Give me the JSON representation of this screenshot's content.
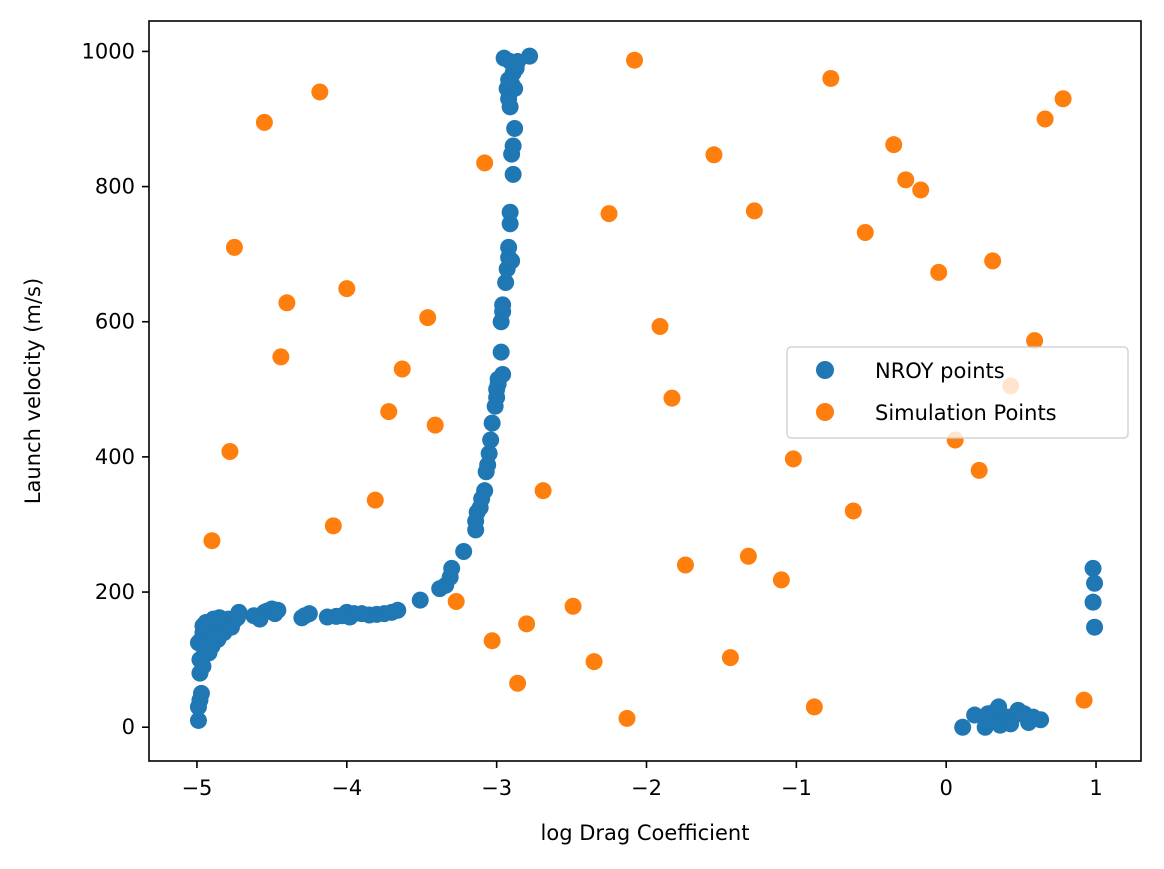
{
  "chart_data": {
    "type": "scatter",
    "title": "",
    "xlabel": "log Drag Coefficient",
    "ylabel": "Launch velocity (m/s)",
    "xlim": [
      -5.32,
      1.3
    ],
    "ylim": [
      -50,
      1045
    ],
    "xticks": [
      -5,
      -4,
      -3,
      -2,
      -1,
      0,
      1
    ],
    "xtick_labels": [
      "−5",
      "−4",
      "−3",
      "−2",
      "−1",
      "0",
      "1"
    ],
    "yticks": [
      0,
      200,
      400,
      600,
      800,
      1000
    ],
    "ytick_labels": [
      "0",
      "200",
      "400",
      "600",
      "800",
      "1000"
    ],
    "grid": false,
    "legend_position": "center-right",
    "series": [
      {
        "name": "NROY points",
        "color": "#1f77b4",
        "points": [
          [
            -4.99,
            10
          ],
          [
            -4.99,
            30
          ],
          [
            -4.98,
            40
          ],
          [
            -4.97,
            50
          ],
          [
            -4.98,
            80
          ],
          [
            -4.98,
            100
          ],
          [
            -4.96,
            90
          ],
          [
            -4.99,
            125
          ],
          [
            -4.95,
            115
          ],
          [
            -4.97,
            130
          ],
          [
            -4.96,
            140
          ],
          [
            -4.96,
            150
          ],
          [
            -4.94,
            155
          ],
          [
            -4.93,
            130
          ],
          [
            -4.92,
            110
          ],
          [
            -4.91,
            145
          ],
          [
            -4.9,
            120
          ],
          [
            -4.89,
            160
          ],
          [
            -4.88,
            138
          ],
          [
            -4.87,
            150
          ],
          [
            -4.86,
            130
          ],
          [
            -4.85,
            162
          ],
          [
            -4.84,
            145
          ],
          [
            -4.83,
            155
          ],
          [
            -4.82,
            140
          ],
          [
            -4.8,
            150
          ],
          [
            -4.79,
            160
          ],
          [
            -4.77,
            148
          ],
          [
            -4.75,
            158
          ],
          [
            -4.73,
            162
          ],
          [
            -4.72,
            170
          ],
          [
            -4.62,
            165
          ],
          [
            -4.58,
            160
          ],
          [
            -4.55,
            170
          ],
          [
            -4.53,
            172
          ],
          [
            -4.5,
            175
          ],
          [
            -4.48,
            168
          ],
          [
            -4.46,
            173
          ],
          [
            -4.3,
            162
          ],
          [
            -4.28,
            165
          ],
          [
            -4.25,
            168
          ],
          [
            -4.13,
            163
          ],
          [
            -4.07,
            164
          ],
          [
            -4.03,
            165
          ],
          [
            -4.0,
            170
          ],
          [
            -3.98,
            163
          ],
          [
            -3.95,
            168
          ],
          [
            -3.9,
            168
          ],
          [
            -3.85,
            166
          ],
          [
            -3.8,
            167
          ],
          [
            -3.75,
            168
          ],
          [
            -3.7,
            170
          ],
          [
            -3.66,
            173
          ],
          [
            -3.51,
            188
          ],
          [
            -3.38,
            205
          ],
          [
            -3.34,
            210
          ],
          [
            -3.31,
            222
          ],
          [
            -3.3,
            235
          ],
          [
            -3.22,
            260
          ],
          [
            -3.14,
            292
          ],
          [
            -3.14,
            305
          ],
          [
            -3.13,
            318
          ],
          [
            -3.11,
            325
          ],
          [
            -3.1,
            338
          ],
          [
            -3.08,
            350
          ],
          [
            -3.07,
            378
          ],
          [
            -3.06,
            388
          ],
          [
            -3.05,
            405
          ],
          [
            -3.04,
            425
          ],
          [
            -3.03,
            450
          ],
          [
            -3.01,
            475
          ],
          [
            -3.0,
            488
          ],
          [
            -3.0,
            500
          ],
          [
            -2.99,
            508
          ],
          [
            -2.99,
            515
          ],
          [
            -2.96,
            522
          ],
          [
            -2.97,
            555
          ],
          [
            -2.97,
            600
          ],
          [
            -2.96,
            615
          ],
          [
            -2.96,
            625
          ],
          [
            -2.94,
            658
          ],
          [
            -2.93,
            678
          ],
          [
            -2.92,
            695
          ],
          [
            -2.92,
            710
          ],
          [
            -2.9,
            690
          ],
          [
            -2.91,
            745
          ],
          [
            -2.91,
            762
          ],
          [
            -2.89,
            818
          ],
          [
            -2.9,
            848
          ],
          [
            -2.89,
            860
          ],
          [
            -2.88,
            886
          ],
          [
            -2.91,
            918
          ],
          [
            -2.92,
            930
          ],
          [
            -2.93,
            945
          ],
          [
            -2.9,
            952
          ],
          [
            -2.88,
            945
          ],
          [
            -2.92,
            958
          ],
          [
            -2.89,
            968
          ],
          [
            -2.87,
            975
          ],
          [
            -2.95,
            990
          ],
          [
            -2.91,
            985
          ],
          [
            -2.86,
            985
          ],
          [
            -2.78,
            993
          ],
          [
            0.11,
            0
          ],
          [
            0.19,
            18
          ],
          [
            0.26,
            0
          ],
          [
            0.28,
            20
          ],
          [
            0.3,
            10
          ],
          [
            0.33,
            24
          ],
          [
            0.35,
            30
          ],
          [
            0.36,
            3
          ],
          [
            0.38,
            12
          ],
          [
            0.41,
            15
          ],
          [
            0.43,
            5
          ],
          [
            0.46,
            18
          ],
          [
            0.48,
            25
          ],
          [
            0.52,
            20
          ],
          [
            0.55,
            7
          ],
          [
            0.58,
            15
          ],
          [
            0.63,
            11
          ],
          [
            0.98,
            235
          ],
          [
            0.99,
            213
          ],
          [
            0.98,
            185
          ],
          [
            0.99,
            148
          ]
        ]
      },
      {
        "name": "Simulation Points",
        "color": "#ff7f0e",
        "points": [
          [
            -4.55,
            895
          ],
          [
            -4.18,
            940
          ],
          [
            -2.08,
            987
          ],
          [
            -0.77,
            960
          ],
          [
            0.78,
            930
          ],
          [
            0.66,
            900
          ],
          [
            -3.08,
            835
          ],
          [
            -1.55,
            847
          ],
          [
            -0.35,
            862
          ],
          [
            -0.27,
            810
          ],
          [
            -0.17,
            795
          ],
          [
            -4.75,
            710
          ],
          [
            -2.25,
            760
          ],
          [
            -1.28,
            764
          ],
          [
            -0.54,
            732
          ],
          [
            -0.05,
            673
          ],
          [
            0.31,
            690
          ],
          [
            -4.4,
            628
          ],
          [
            -4.0,
            649
          ],
          [
            -3.46,
            606
          ],
          [
            -1.91,
            593
          ],
          [
            0.59,
            572
          ],
          [
            -4.44,
            548
          ],
          [
            -3.63,
            530
          ],
          [
            -3.72,
            467
          ],
          [
            -3.41,
            447
          ],
          [
            -1.83,
            487
          ],
          [
            0.43,
            505
          ],
          [
            0.06,
            425
          ],
          [
            -4.78,
            408
          ],
          [
            -1.02,
            397
          ],
          [
            0.22,
            380
          ],
          [
            -2.69,
            350
          ],
          [
            -3.81,
            336
          ],
          [
            -0.62,
            320
          ],
          [
            -4.09,
            298
          ],
          [
            -4.9,
            276
          ],
          [
            -1.74,
            240
          ],
          [
            -1.32,
            253
          ],
          [
            -1.1,
            218
          ],
          [
            -3.27,
            186
          ],
          [
            -2.49,
            179
          ],
          [
            -3.03,
            128
          ],
          [
            -2.8,
            153
          ],
          [
            -2.35,
            97
          ],
          [
            -1.44,
            103
          ],
          [
            -2.86,
            65
          ],
          [
            -2.13,
            13
          ],
          [
            -0.88,
            30
          ],
          [
            0.92,
            40
          ]
        ]
      }
    ]
  }
}
